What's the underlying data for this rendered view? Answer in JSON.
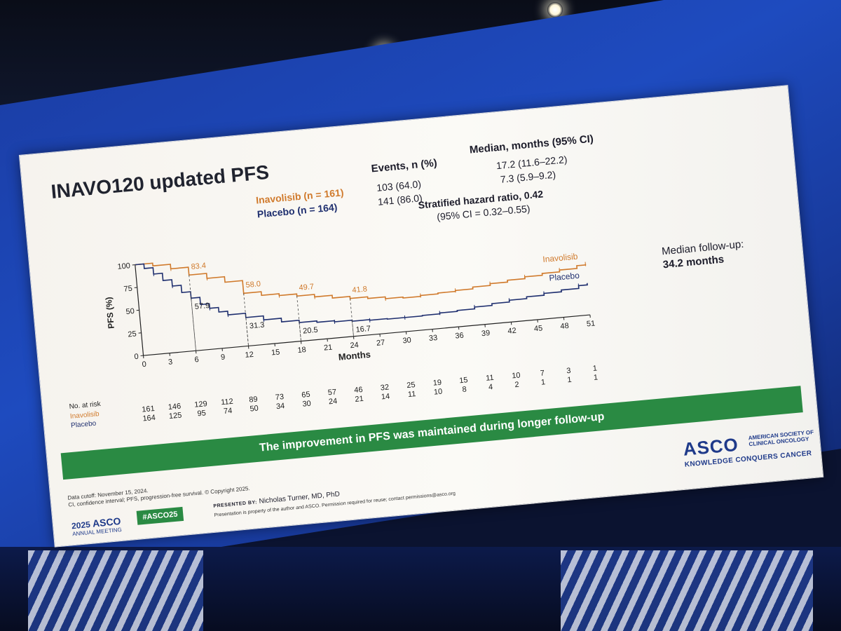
{
  "slide": {
    "title": "INAVO120 updated PFS",
    "legend": {
      "inavolisib": "Inavolisib (n = 161)",
      "placebo": "Placebo (n = 164)"
    },
    "events_header": "Events, n (%)",
    "events_inavolisib": "103 (64.0)",
    "events_placebo": "141 (86.0)",
    "median_header": "Median, months (95% CI)",
    "median_inavolisib": "17.2 (11.6–22.2)",
    "median_placebo": "7.3 (5.9–9.2)",
    "hazard_ratio": "Stratified hazard ratio, 0.42",
    "hazard_ci": "(95% CI = 0.32–0.55)",
    "followup_label": "Median follow-up:",
    "followup_value": "34.2 months",
    "banner": "The improvement in PFS was maintained during longer follow-up",
    "footnote_cutoff": "Data cutoff: November 15, 2024.",
    "footnote_abbrev": "CI, confidence interval; PFS, progression-free survival. © Copyright 2025.",
    "meeting_year": "2025",
    "meeting_org": "ASCO",
    "meeting_sub": "ANNUAL MEETING",
    "hashtag": "#ASCO25",
    "presented_by_label": "PRESENTED BY:",
    "presenter": "Nicholas Turner, MD, PhD",
    "property_note": "Presentation is property of the author and ASCO. Permission required for reuse; contact permissions@asco.org",
    "asco_word": "ASCO",
    "asco_society": "AMERICAN SOCIETY OF CLINICAL ONCOLOGY",
    "asco_tagline": "KNOWLEDGE CONQUERS CANCER"
  },
  "chart_data": {
    "type": "line",
    "xlabel": "Months",
    "ylabel": "PFS (%)",
    "xlim": [
      0,
      51
    ],
    "ylim": [
      0,
      100
    ],
    "xticks": [
      0,
      3,
      6,
      9,
      12,
      15,
      18,
      21,
      24,
      27,
      30,
      33,
      36,
      39,
      42,
      45,
      48,
      51
    ],
    "yticks": [
      0,
      25,
      50,
      75,
      100
    ],
    "colors": {
      "inavolisib": "#d07a2c",
      "placebo": "#1f2f6f"
    },
    "series": [
      {
        "name": "Inavolisib",
        "x": [
          0,
          2,
          4,
          6,
          8,
          10,
          12,
          14,
          16,
          18,
          20,
          22,
          24,
          26,
          28,
          30,
          32,
          34,
          36,
          38,
          40,
          42,
          44,
          46,
          48,
          50,
          51
        ],
        "y": [
          100,
          97,
          92,
          83.4,
          78,
          72,
          58,
          54,
          52,
          49.7,
          47,
          44,
          41.8,
          40,
          38,
          37,
          38,
          39,
          40,
          42,
          44,
          46,
          48,
          50,
          52,
          55,
          56
        ]
      },
      {
        "name": "Placebo",
        "x": [
          0,
          1,
          2,
          3,
          4,
          5,
          6,
          7,
          8,
          9,
          10,
          12,
          14,
          16,
          18,
          20,
          22,
          24,
          26,
          28,
          30,
          32,
          34,
          36,
          38,
          40,
          42,
          44,
          46,
          48,
          50,
          51
        ],
        "y": [
          100,
          95,
          88,
          80,
          73,
          65,
          57.9,
          50,
          45,
          40,
          36,
          31.3,
          27,
          23,
          20.5,
          19,
          17.8,
          16.7,
          16,
          15.5,
          15.5,
          16,
          17,
          18,
          20,
          22,
          24,
          26,
          28,
          30,
          33,
          35
        ]
      }
    ],
    "annotations": {
      "inavolisib": [
        {
          "x": 6,
          "label": "83.4"
        },
        {
          "x": 12,
          "label": "58.0"
        },
        {
          "x": 18,
          "label": "49.7"
        },
        {
          "x": 24,
          "label": "41.8"
        }
      ],
      "placebo": [
        {
          "x": 6,
          "label": "57.9"
        },
        {
          "x": 12,
          "label": "31.3"
        },
        {
          "x": 18,
          "label": "20.5"
        },
        {
          "x": 24,
          "label": "16.7"
        }
      ]
    },
    "end_labels": {
      "inavolisib": "Inavolisib",
      "placebo": "Placebo"
    },
    "risk_table": {
      "header": "No. at risk",
      "rows": [
        {
          "name": "Inavolisib",
          "values": [
            161,
            146,
            129,
            112,
            89,
            73,
            65,
            57,
            46,
            32,
            25,
            19,
            15,
            11,
            10,
            7,
            3,
            1
          ]
        },
        {
          "name": "Placebo",
          "values": [
            164,
            125,
            95,
            74,
            50,
            34,
            30,
            24,
            21,
            14,
            11,
            10,
            8,
            4,
            2,
            1,
            1,
            1
          ]
        }
      ]
    }
  }
}
